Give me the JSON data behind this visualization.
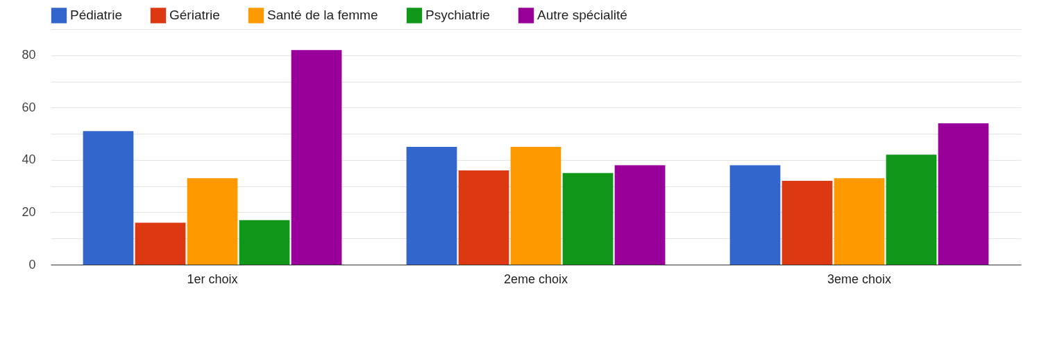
{
  "chart_data": {
    "type": "bar",
    "categories": [
      "1er choix",
      "2eme choix",
      "3eme choix"
    ],
    "series": [
      {
        "name": "Pédiatrie",
        "color": "#3366cc",
        "values": [
          51,
          45,
          38
        ]
      },
      {
        "name": "Gériatrie",
        "color": "#dc3912",
        "values": [
          16,
          36,
          32
        ]
      },
      {
        "name": "Santé de la femme",
        "color": "#ff9900",
        "values": [
          33,
          45,
          33
        ]
      },
      {
        "name": "Psychiatrie",
        "color": "#109618",
        "values": [
          17,
          35,
          42
        ]
      },
      {
        "name": "Autre spécialité",
        "color": "#990099",
        "values": [
          82,
          38,
          54
        ]
      }
    ],
    "ylim": [
      0,
      90
    ],
    "yticks": [
      0,
      {
        "value": 10,
        "label": null
      },
      20,
      {
        "value": 30,
        "label": null
      },
      40,
      {
        "value": 50,
        "label": null
      },
      60,
      {
        "value": 70,
        "label": null
      },
      80,
      {
        "value": 90,
        "label": null
      }
    ],
    "grid": "y",
    "legend": "top"
  }
}
